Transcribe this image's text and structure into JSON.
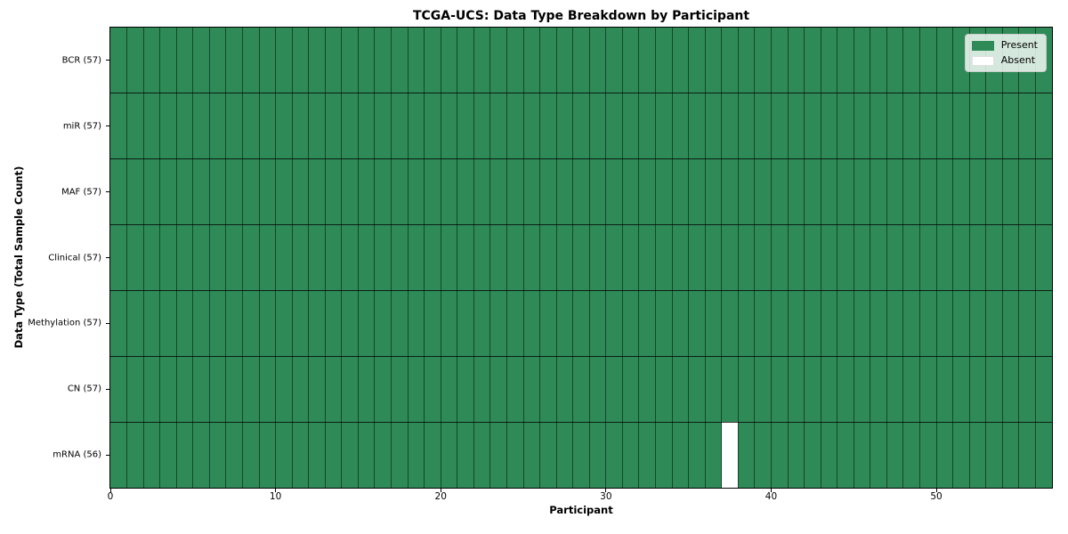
{
  "chart_data": {
    "type": "heatmap",
    "title": "TCGA-UCS: Data Type Breakdown by Participant",
    "xlabel": "Participant",
    "ylabel": "Data Type (Total Sample Count)",
    "n_participants": 57,
    "x_ticks": [
      0,
      10,
      20,
      30,
      40,
      50
    ],
    "x_range": [
      0,
      57
    ],
    "grid": true,
    "legend_position": "upper right",
    "rows": [
      {
        "label": "BCR (57)",
        "data_type": "BCR",
        "sample_count": 57,
        "absent_participants": []
      },
      {
        "label": "miR (57)",
        "data_type": "miR",
        "sample_count": 57,
        "absent_participants": []
      },
      {
        "label": "MAF (57)",
        "data_type": "MAF",
        "sample_count": 57,
        "absent_participants": []
      },
      {
        "label": "Clinical (57)",
        "data_type": "Clinical",
        "sample_count": 57,
        "absent_participants": []
      },
      {
        "label": "Methylation (57)",
        "data_type": "Methylation",
        "sample_count": 57,
        "absent_participants": []
      },
      {
        "label": "CN (57)",
        "data_type": "CN",
        "sample_count": 57,
        "absent_participants": []
      },
      {
        "label": "mRNA (56)",
        "data_type": "mRNA",
        "sample_count": 56,
        "absent_participants": [
          37
        ]
      }
    ],
    "legend": [
      {
        "label": "Present",
        "color": "#2E8B57"
      },
      {
        "label": "Absent",
        "color": "#FFFFFF"
      }
    ],
    "colors": {
      "present": "#2E8B57",
      "absent": "#FFFFFF",
      "cell_edge": "rgba(0,0,0,0.5)",
      "row_divider": "rgba(0,0,0,0.78)",
      "frame": "#000000",
      "background": "#FFFFFF"
    }
  }
}
